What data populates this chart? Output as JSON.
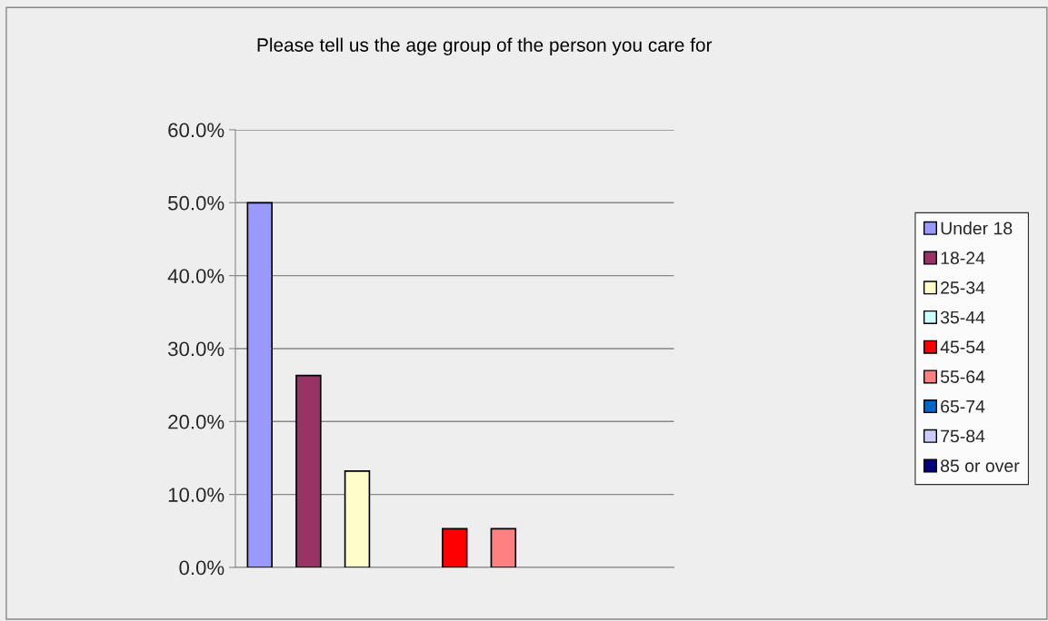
{
  "chart_data": {
    "type": "bar",
    "title": "Please tell us the age group of the person you care for",
    "categories": [
      null
    ],
    "series": [
      {
        "name": "Under 18",
        "color": "#9999ff",
        "values": [
          50.0
        ]
      },
      {
        "name": "18-24",
        "color": "#993366",
        "values": [
          26.3
        ]
      },
      {
        "name": "25-34",
        "color": "#ffffcc",
        "values": [
          13.2
        ]
      },
      {
        "name": "35-44",
        "color": "#ccffff",
        "values": [
          0
        ]
      },
      {
        "name": "45-54",
        "color": "#ff0000",
        "values": [
          5.3
        ]
      },
      {
        "name": "55-64",
        "color": "#ff8080",
        "values": [
          5.3
        ]
      },
      {
        "name": "65-74",
        "color": "#0066cc",
        "values": [
          0
        ]
      },
      {
        "name": "75-84",
        "color": "#ccccff",
        "values": [
          0
        ]
      },
      {
        "name": "85 or over",
        "color": "#000080",
        "values": [
          0
        ]
      }
    ],
    "ylim": [
      0,
      60
    ],
    "yticks": [
      {
        "value": 0,
        "label": "0.0%"
      },
      {
        "value": 10,
        "label": "10.0%"
      },
      {
        "value": 20,
        "label": "20.0%"
      },
      {
        "value": 30,
        "label": "30.0%"
      },
      {
        "value": 40,
        "label": "40.0%"
      },
      {
        "value": 50,
        "label": "50.0%"
      },
      {
        "value": 60,
        "label": "60.0%"
      }
    ],
    "grid": "y",
    "legend": "right"
  }
}
